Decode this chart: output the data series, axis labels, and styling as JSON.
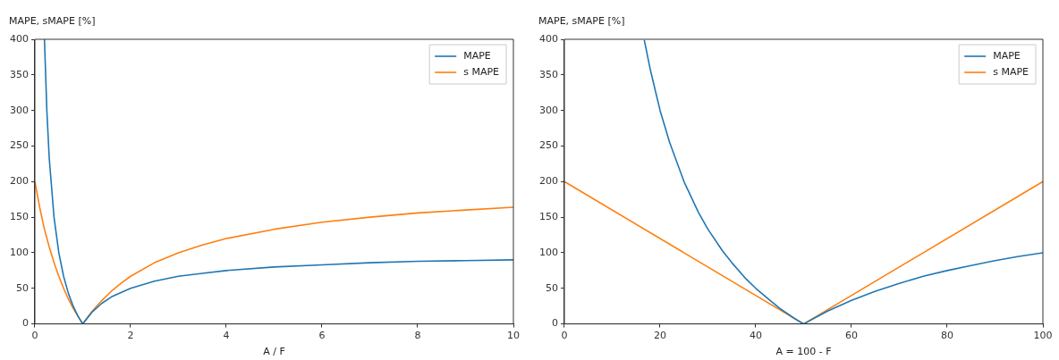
{
  "chart_data": [
    {
      "type": "line",
      "ylabel": "MAPE, sMAPE [%]",
      "xlabel": "A / F",
      "xlim": [
        0,
        10
      ],
      "ylim": [
        0,
        400
      ],
      "xticks": [
        0,
        2,
        4,
        6,
        8,
        10
      ],
      "yticks": [
        0,
        50,
        100,
        150,
        200,
        250,
        300,
        350,
        400
      ],
      "grid": false,
      "legend": "top right",
      "marker": "none",
      "line_style": "solid",
      "series": [
        {
          "name": "MAPE",
          "color": "#1f77b4",
          "x": [
            0.2,
            0.25,
            0.3,
            0.4,
            0.5,
            0.6,
            0.7,
            0.8,
            0.9,
            1,
            1.2,
            1.4,
            1.6,
            1.8,
            2,
            2.5,
            3,
            3.5,
            4,
            5,
            6,
            7,
            8,
            9,
            10
          ],
          "values": [
            400,
            300,
            233,
            150,
            100,
            67,
            43,
            25,
            11,
            0,
            17,
            29,
            38,
            44,
            50,
            60,
            67,
            71,
            75,
            80,
            83,
            86,
            88,
            89,
            90
          ]
        },
        {
          "name": "s MAPE",
          "color": "#ff7f0e",
          "x": [
            0,
            0.1,
            0.2,
            0.3,
            0.4,
            0.5,
            0.6,
            0.7,
            0.8,
            0.9,
            1,
            1.2,
            1.4,
            1.6,
            1.8,
            2,
            2.5,
            3,
            3.5,
            4,
            5,
            6,
            7,
            8,
            9,
            10
          ],
          "values": [
            200,
            164,
            133,
            108,
            86,
            67,
            50,
            35,
            22,
            11,
            0,
            18,
            33,
            46,
            57,
            67,
            86,
            100,
            111,
            120,
            133,
            143,
            150,
            156,
            160,
            164
          ]
        }
      ]
    },
    {
      "type": "line",
      "ylabel": "MAPE, sMAPE [%]",
      "xlabel": "A = 100 - F",
      "xlim": [
        0,
        100
      ],
      "ylim": [
        0,
        400
      ],
      "xticks": [
        0,
        20,
        40,
        60,
        80,
        100
      ],
      "yticks": [
        0,
        50,
        100,
        150,
        200,
        250,
        300,
        350,
        400
      ],
      "grid": false,
      "legend": "top right",
      "marker": "none",
      "line_style": "solid",
      "series": [
        {
          "name": "MAPE",
          "color": "#1f77b4",
          "x": [
            16.7,
            18,
            20,
            22,
            25,
            28,
            30,
            33,
            35,
            38,
            40,
            43,
            45,
            48,
            50,
            55,
            60,
            65,
            70,
            75,
            80,
            85,
            90,
            95,
            100
          ],
          "values": [
            399,
            356,
            300,
            255,
            200,
            157,
            133,
            103,
            86,
            63,
            50,
            33,
            22,
            8,
            0,
            18,
            33,
            46,
            57,
            67,
            75,
            82,
            89,
            95,
            100
          ]
        },
        {
          "name": "s MAPE",
          "color": "#ff7f0e",
          "x": [
            0,
            50,
            100
          ],
          "values": [
            200,
            0,
            200
          ]
        }
      ]
    }
  ]
}
